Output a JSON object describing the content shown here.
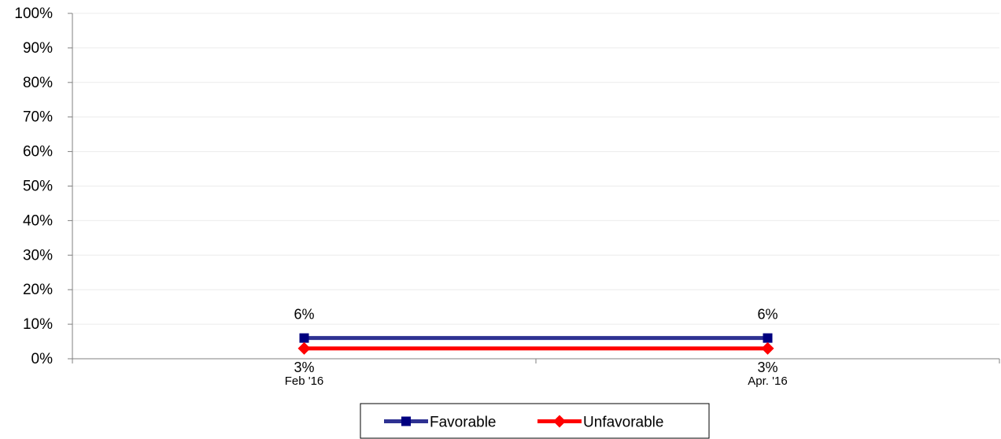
{
  "chart_data": {
    "type": "line",
    "title": "",
    "xlabel": "",
    "ylabel": "",
    "categories": [
      "Feb '16",
      "Apr. '16"
    ],
    "ylim": [
      0,
      100
    ],
    "y_ticks": [
      "0%",
      "10%",
      "20%",
      "30%",
      "40%",
      "50%",
      "60%",
      "70%",
      "80%",
      "90%",
      "100%"
    ],
    "y_tick_values": [
      0,
      10,
      20,
      30,
      40,
      50,
      60,
      70,
      80,
      90,
      100
    ],
    "grid": true,
    "legend_position": "bottom",
    "series": [
      {
        "name": "Favorable",
        "values": [
          6,
          6
        ],
        "labels": [
          "6%",
          "6%"
        ],
        "color": "#2E3192",
        "marker": "square",
        "marker_color": "#000080",
        "label_position": "above"
      },
      {
        "name": "Unfavorable",
        "values": [
          3,
          3
        ],
        "labels": [
          "3%",
          "3%"
        ],
        "color": "#FF0000",
        "marker": "diamond",
        "marker_color": "#FF0000",
        "label_position": "below"
      }
    ]
  }
}
